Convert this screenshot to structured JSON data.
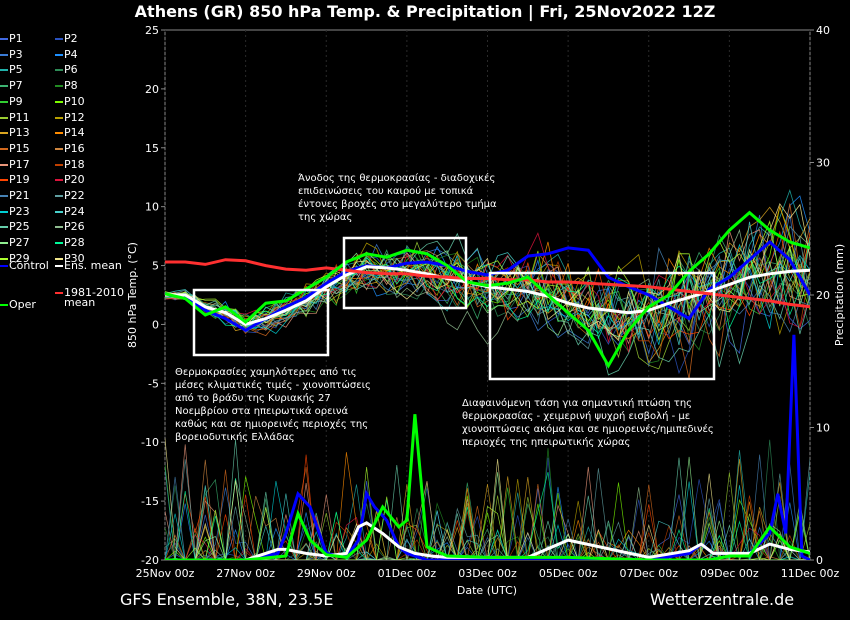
{
  "header": {
    "title": "Athens  (GR)  850 hPa Temp. & Precipitation | Fri, 25Nov2022 12Z"
  },
  "footer": {
    "left": "GFS Ensemble, 38N, 23.5E",
    "right": "Wetterzentrale.de"
  },
  "annotations": {
    "warm": [
      "Άνοδος της θερμοκρασίας - διαδοχικές",
      "επιδεινώσεις του καιρού με τοπικά",
      "έντονες βροχές στο μεγαλύτερο τμήμα",
      "της χώρας"
    ],
    "cold_start": [
      "Θερμοκρασίες χαμηλότερες από τις",
      "μέσες κλιματικές τιμές - χιονοπτώσεις",
      "από το βράδυ της Κυριακής 27",
      "Νοεμβρίου στα ηπειρωτικά ορεινά",
      "καθώς και σε ημιορεινές περιοχές της",
      "βορειοδυτικής Ελλάδας"
    ],
    "cold_end": [
      "Διαφαινόμενη τάση για σημαντική πτώση της",
      "θερμοκρασίας - χειμερινή ψυχρή εισβολή - με",
      "χιονοπτώσεις ακόμα και σε ημιορεινές/ημιπεδινές",
      "περιοχές της ηπειρωτικής χώρας"
    ]
  },
  "legend": {
    "members": [
      {
        "label": "P1",
        "color": "#4169e1"
      },
      {
        "label": "P2",
        "color": "#2a52be"
      },
      {
        "label": "P3",
        "color": "#3a7bd5"
      },
      {
        "label": "P4",
        "color": "#1e90ff"
      },
      {
        "label": "P5",
        "color": "#20b2aa"
      },
      {
        "label": "P6",
        "color": "#2e8b57"
      },
      {
        "label": "P7",
        "color": "#3cb371"
      },
      {
        "label": "P8",
        "color": "#228b22"
      },
      {
        "label": "P9",
        "color": "#32cd32"
      },
      {
        "label": "P10",
        "color": "#7cfc00"
      },
      {
        "label": "P11",
        "color": "#9acd32"
      },
      {
        "label": "P12",
        "color": "#b8a000"
      },
      {
        "label": "P13",
        "color": "#daa520"
      },
      {
        "label": "P14",
        "color": "#ff8c00"
      },
      {
        "label": "P15",
        "color": "#d2691e"
      },
      {
        "label": "P16",
        "color": "#cd853f"
      },
      {
        "label": "P17",
        "color": "#e9967a"
      },
      {
        "label": "P18",
        "color": "#c04000"
      },
      {
        "label": "P19",
        "color": "#ff4500"
      },
      {
        "label": "P20",
        "color": "#dc143c"
      },
      {
        "label": "P21",
        "color": "#4682b4"
      },
      {
        "label": "P22",
        "color": "#5f9ea0"
      },
      {
        "label": "P23",
        "color": "#00ced1"
      },
      {
        "label": "P24",
        "color": "#48d1cc"
      },
      {
        "label": "P25",
        "color": "#66cdaa"
      },
      {
        "label": "P26",
        "color": "#8fbc8f"
      },
      {
        "label": "P27",
        "color": "#90ee90"
      },
      {
        "label": "P28",
        "color": "#00fa9a"
      },
      {
        "label": "P29",
        "color": "#adff2f"
      },
      {
        "label": "P30",
        "color": "#f0e68c"
      }
    ],
    "control": {
      "label": "Control",
      "color": "#0000ff"
    },
    "ens_mean": {
      "label": "Ens. mean",
      "color": "#ffffff"
    },
    "climate": {
      "label_line1": "1981-2010",
      "label_line2": "mean",
      "color": "#ff3030"
    },
    "oper": {
      "label": "Oper",
      "color": "#00ff00"
    }
  },
  "chart_data": {
    "type": "line",
    "title": "Athens  (GR)  850 hPa Temp. & Precipitation | Fri, 25Nov2022 12Z",
    "xlabel": "Date (UTC)",
    "ylabel": "850 hPa Temp. (°C)",
    "y2label": "Precipitation (mm)",
    "ylim": [
      -20,
      25
    ],
    "y2lim": [
      0,
      40
    ],
    "yticks": [
      -20,
      -15,
      -10,
      -5,
      0,
      5,
      10,
      15,
      20,
      25
    ],
    "y2ticks": [
      0,
      10,
      20,
      30,
      40
    ],
    "xlim_days": [
      0,
      16
    ],
    "xticks": [
      "25Nov 00z",
      "27Nov 00z",
      "29Nov 00z",
      "01Dec 00z",
      "03Dec 00z",
      "05Dec 00z",
      "07Dec 00z",
      "09Dec 00z",
      "11Dec 00z"
    ],
    "series": [
      {
        "name": "Control",
        "color": "#0000ff",
        "t": [
          0,
          0.5,
          1,
          1.5,
          2,
          2.5,
          3,
          3.5,
          4,
          4.5,
          5,
          5.5,
          6,
          6.5,
          7,
          7.5,
          8,
          8.5,
          9,
          9.5,
          10,
          10.5,
          11,
          11.5,
          12,
          12.5,
          13,
          13.5,
          14,
          14.5,
          15,
          15.5,
          16
        ],
        "temp": [
          2.5,
          2.4,
          1.2,
          0.5,
          -0.5,
          0.5,
          1.5,
          2.3,
          3.5,
          4.5,
          5.0,
          4.8,
          5.2,
          5.3,
          5.0,
          4.5,
          4.2,
          4.6,
          5.8,
          6.0,
          6.5,
          6.3,
          4.0,
          3.2,
          2.5,
          1.5,
          0.5,
          3.0,
          4.0,
          5.5,
          7.0,
          5.5,
          2.5
        ]
      },
      {
        "name": "Ens. mean",
        "color": "#ffffff",
        "t": [
          0,
          0.5,
          1,
          1.5,
          2,
          2.5,
          3,
          3.5,
          4,
          4.5,
          5,
          5.5,
          6,
          6.5,
          7,
          7.5,
          8,
          8.5,
          9,
          9.5,
          10,
          10.5,
          11,
          11.5,
          12,
          12.5,
          13,
          13.5,
          14,
          14.5,
          15,
          15.5,
          16
        ],
        "temp": [
          2.5,
          2.5,
          1.5,
          1.0,
          0.0,
          0.5,
          1.2,
          2.0,
          3.2,
          4.2,
          4.9,
          4.8,
          4.6,
          4.3,
          3.9,
          3.6,
          3.2,
          3.0,
          2.8,
          2.4,
          1.8,
          1.4,
          1.2,
          1.0,
          1.2,
          1.8,
          2.3,
          2.8,
          3.4,
          4.0,
          4.3,
          4.5,
          4.6
        ]
      },
      {
        "name": "1981-2010 mean",
        "color": "#ff3030",
        "t": [
          0,
          0.5,
          1,
          1.5,
          2,
          2.5,
          3,
          3.5,
          4,
          4.5,
          5,
          5.5,
          6,
          6.5,
          7,
          7.5,
          8,
          8.5,
          9,
          9.5,
          10,
          10.5,
          11,
          11.5,
          12,
          12.5,
          13,
          13.5,
          14,
          14.5,
          15,
          15.5,
          16
        ],
        "temp": [
          5.3,
          5.3,
          5.1,
          5.5,
          5.4,
          5.0,
          4.7,
          4.6,
          4.8,
          4.6,
          4.4,
          4.3,
          4.3,
          4.1,
          4.0,
          3.9,
          3.9,
          3.8,
          3.8,
          3.6,
          3.6,
          3.5,
          3.4,
          3.3,
          3.2,
          3.0,
          2.8,
          2.6,
          2.4,
          2.2,
          2.0,
          1.7,
          1.5
        ]
      },
      {
        "name": "Oper",
        "color": "#00ff00",
        "t": [
          0,
          0.5,
          1,
          1.5,
          2,
          2.5,
          3,
          3.5,
          4,
          4.5,
          5,
          5.5,
          6,
          6.5,
          7,
          7.5,
          8,
          8.5,
          9,
          9.5,
          10,
          10.5,
          11,
          11.5,
          12,
          12.5,
          13,
          13.5,
          14,
          14.5,
          15,
          15.5,
          16
        ],
        "temp": [
          2.6,
          2.2,
          0.8,
          1.5,
          0.2,
          1.8,
          2.0,
          3.0,
          4.0,
          5.3,
          6.0,
          5.7,
          6.3,
          6.0,
          5.0,
          3.6,
          3.3,
          3.5,
          4.0,
          2.5,
          1.0,
          -0.5,
          -3.5,
          -0.5,
          1.5,
          2.5,
          4.5,
          6.0,
          8.0,
          9.5,
          8.0,
          7.0,
          6.5
        ]
      }
    ],
    "precip": [
      {
        "name": "Control",
        "color": "#0000ff",
        "t": [
          0,
          2,
          2.8,
          3,
          3.3,
          3.6,
          4,
          4.5,
          4.8,
          5,
          5.2,
          5.5,
          5.8,
          6,
          6.5,
          7,
          8,
          10,
          12,
          13,
          13.3,
          13.6,
          14,
          14.5,
          15,
          15.2,
          15.4,
          15.6,
          15.8,
          16
        ],
        "mm": [
          0,
          0,
          0.5,
          2,
          5,
          4,
          0.5,
          0.2,
          1.5,
          5,
          4,
          3,
          1,
          0.5,
          0,
          0,
          0,
          0,
          0,
          0.5,
          1.2,
          0.5,
          0.5,
          0.5,
          2,
          5,
          2,
          17,
          0.3,
          0
        ]
      },
      {
        "name": "Ens. mean",
        "color": "#ffffff",
        "t": [
          0,
          2,
          2.8,
          3,
          3.5,
          4,
          4.5,
          4.8,
          5,
          5.4,
          5.8,
          6.2,
          6.6,
          7,
          8,
          9,
          10,
          12,
          13,
          13.3,
          13.6,
          14,
          14.5,
          15,
          15.5,
          16
        ],
        "mm": [
          0,
          0,
          0.8,
          0.8,
          0.5,
          0.3,
          0.5,
          2.5,
          2.8,
          2.0,
          1.0,
          0.5,
          0.3,
          0.2,
          0.2,
          0.2,
          1.5,
          0.2,
          0.7,
          1.2,
          0.5,
          0.5,
          0.5,
          1.2,
          0.8,
          0.6
        ]
      },
      {
        "name": "Oper",
        "color": "#00ff00",
        "t": [
          0,
          2,
          3,
          3.3,
          3.6,
          4,
          4.5,
          5,
          5.4,
          5.8,
          6,
          6.2,
          6.5,
          7,
          8,
          10,
          12,
          13,
          13.5,
          14,
          14.5,
          15,
          15.5,
          16
        ],
        "mm": [
          0,
          0,
          0.3,
          3.5,
          1.5,
          0.4,
          0.2,
          1.5,
          4,
          2.5,
          3,
          11,
          1,
          0.3,
          0.2,
          0.2,
          0,
          0,
          0,
          0.3,
          0.3,
          2.5,
          1.0,
          0.5
        ]
      }
    ]
  }
}
